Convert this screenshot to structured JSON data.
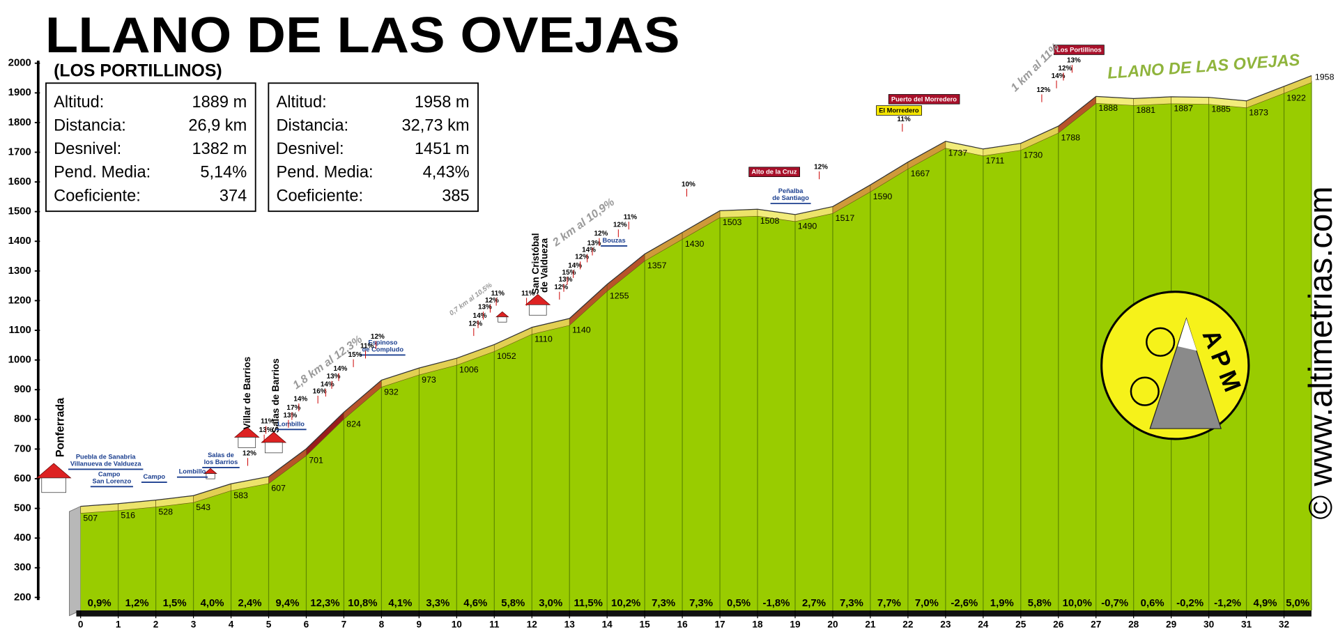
{
  "chart_data": {
    "type": "area",
    "title": "LLANO DE LAS OVEJAS",
    "subtitle": "(LOS PORTILLINOS)",
    "stats": [
      {
        "rows": [
          [
            "Altitud:",
            "1889 m"
          ],
          [
            "Distancia:",
            "26,9 km"
          ],
          [
            "Desnivel:",
            "1382 m"
          ],
          [
            "Pend. Media:",
            "5,14%"
          ],
          [
            "Coeficiente:",
            "374"
          ]
        ]
      },
      {
        "rows": [
          [
            "Altitud:",
            "1958 m"
          ],
          [
            "Distancia:",
            "32,73 km"
          ],
          [
            "Desnivel:",
            "1451 m"
          ],
          [
            "Pend. Media:",
            "4,43%"
          ],
          [
            "Coeficiente:",
            "385"
          ]
        ]
      }
    ],
    "x": [
      0,
      1,
      2,
      3,
      4,
      5,
      6,
      7,
      8,
      9,
      10,
      11,
      12,
      13,
      14,
      15,
      16,
      17,
      18,
      19,
      20,
      21,
      22,
      23,
      24,
      25,
      26,
      27,
      28,
      29,
      30,
      31,
      32,
      32.73
    ],
    "values": [
      507,
      516,
      528,
      543,
      583,
      607,
      701,
      824,
      932,
      973,
      1006,
      1052,
      1110,
      1140,
      1255,
      1357,
      1430,
      1503,
      1508,
      1490,
      1517,
      1590,
      1667,
      1737,
      1711,
      1730,
      1788,
      1888,
      1881,
      1887,
      1885,
      1873,
      1922,
      1958
    ],
    "color": "#99cc00",
    "gradients": {
      "values": [
        0.9,
        1.2,
        1.5,
        4.0,
        2.4,
        9.4,
        12.3,
        10.8,
        4.1,
        3.3,
        4.6,
        5.8,
        3.0,
        11.5,
        10.2,
        7.3,
        7.3,
        0.5,
        -1.8,
        2.7,
        7.3,
        7.7,
        7.0,
        -2.6,
        1.9,
        5.8,
        10.0,
        -0.7,
        0.6,
        -0.2,
        -1.2,
        4.9,
        5.0
      ],
      "value_labels": [
        "0,9%",
        "1,2%",
        "1,5%",
        "4,0%",
        "2,4%",
        "9,4%",
        "12,3%",
        "10,8%",
        "4,1%",
        "3,3%",
        "4,6%",
        "5,8%",
        "3,0%",
        "11,5%",
        "10,2%",
        "7,3%",
        "7,3%",
        "0,5%",
        "-1,8%",
        "2,7%",
        "7,3%",
        "7,7%",
        "7,0%",
        "-2,6%",
        "1,9%",
        "5,8%",
        "10,0%",
        "-0,7%",
        "0,6%",
        "-0,2%",
        "-1,2%",
        "4,9%",
        "5,0%"
      ]
    },
    "xlim": [
      0,
      32.73
    ],
    "xticks": [
      0,
      1,
      2,
      3,
      4,
      5,
      6,
      7,
      8,
      9,
      10,
      11,
      12,
      13,
      14,
      15,
      16,
      17,
      18,
      19,
      20,
      21,
      22,
      23,
      24,
      25,
      26,
      27,
      28,
      29,
      30,
      31,
      32
    ],
    "ylim": [
      200,
      2000
    ],
    "yticks": [
      200,
      300,
      400,
      500,
      600,
      700,
      800,
      900,
      1000,
      1100,
      1200,
      1300,
      1400,
      1500,
      1600,
      1700,
      1800,
      1900,
      2000
    ],
    "annotations": [
      "Ponferrada",
      "Puebla de Sanabria",
      "Villanueva de Valdueza",
      "Campo",
      "San Lorenzo",
      "Campo",
      "Lombillo",
      "Salas de",
      "los Barrios",
      "Villar de Barrios",
      "Salas de Barrios",
      "Lombillo",
      "Espinoso",
      "de Compludo",
      "San Cristóbal",
      "de Valdueza",
      "Bouzas",
      "Alto de la Cruz",
      "Peñalba",
      "de Santiago",
      "Puerto del Morredero",
      "El Morredero",
      "Los Portillinos",
      "LLANO DE LAS OVEJAS",
      "1,8 km al 12,3%",
      "0,7 km al 10,5%",
      "2 km al 10,9%",
      "1 km al 11%",
      "© www.altimetrias.com"
    ],
    "slope_labels": [
      "12%",
      "13%",
      "11%",
      "13%",
      "17%",
      "14%",
      "16%",
      "14%",
      "13%",
      "14%",
      "15%",
      "11%",
      "12%",
      "12%",
      "14%",
      "13%",
      "12%",
      "11%",
      "11%",
      "12%",
      "13%",
      "15%",
      "14%",
      "12%",
      "14%",
      "13%",
      "12%",
      "12%",
      "11%",
      "10%",
      "12%",
      "11%",
      "12%",
      "14%",
      "12%",
      "13%"
    ],
    "logo_text": "APM"
  }
}
